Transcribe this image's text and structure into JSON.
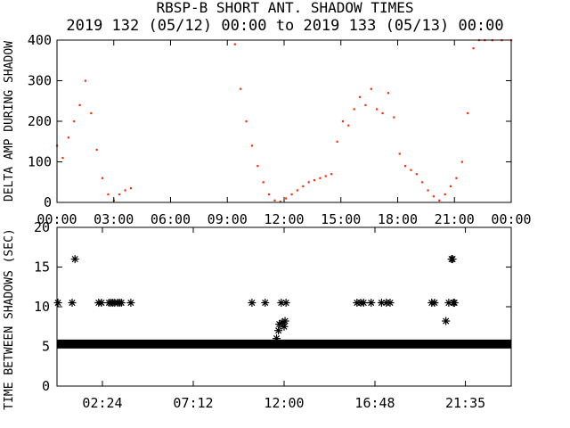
{
  "title_line1": "RBSP-B SHORT ANT. SHADOW TIMES",
  "title_line2": "2019 132 (05/12) 00:00 to 2019 133 (05/13) 00:00",
  "colors": {
    "trace": "#ff2a00",
    "axis": "#000000",
    "marker": "#000000"
  },
  "chart_data": [
    {
      "type": "scatter",
      "ylabel": "DELTA AMP DURING SHADOW",
      "ylim": [
        0,
        400
      ],
      "xlim_hours": [
        0,
        24
      ],
      "yticks": [
        "0",
        "100",
        "200",
        "300",
        "400"
      ],
      "xticks": [
        "00:00",
        "03:00",
        "06:00",
        "09:00",
        "12:00",
        "15:00",
        "18:00",
        "21:00",
        "00:00"
      ],
      "series": [
        {
          "color": "#ff2a00",
          "x_hours": [
            0.0,
            0.3,
            0.6,
            0.9,
            1.2,
            1.5,
            1.8,
            2.1,
            2.4,
            2.7,
            3.0,
            3.3,
            3.6,
            3.9,
            9.4,
            9.7,
            10.0,
            10.3,
            10.6,
            10.9,
            11.2,
            11.5,
            11.8,
            12.1,
            12.4,
            12.7,
            13.0,
            13.3,
            13.6,
            13.9,
            14.2,
            14.5,
            14.8,
            15.1,
            15.4,
            15.7,
            16.0,
            16.3,
            16.6,
            16.9,
            17.2,
            17.5,
            17.8,
            18.1,
            18.4,
            18.7,
            19.0,
            19.3,
            19.6,
            19.9,
            20.2,
            20.5,
            20.8,
            21.1,
            21.4,
            21.7,
            22.0,
            22.3,
            22.6,
            23.0,
            23.5,
            24.0
          ],
          "y": [
            140,
            110,
            160,
            200,
            240,
            300,
            220,
            130,
            60,
            20,
            5,
            20,
            30,
            35,
            390,
            280,
            200,
            140,
            90,
            50,
            20,
            5,
            2,
            10,
            20,
            30,
            40,
            50,
            55,
            60,
            65,
            70,
            150,
            200,
            190,
            230,
            260,
            240,
            280,
            230,
            220,
            270,
            210,
            120,
            90,
            80,
            70,
            50,
            30,
            15,
            5,
            20,
            40,
            60,
            100,
            220,
            380,
            400,
            400,
            400,
            400,
            400
          ]
        }
      ]
    },
    {
      "type": "scatter",
      "ylabel": "TIME BETWEEN SHADOWS (SEC)",
      "ylim": [
        0,
        20
      ],
      "xlim_hours": [
        0,
        24
      ],
      "yticks": [
        "0",
        "5",
        "10",
        "15",
        "20"
      ],
      "xticks": [
        {
          "label": "02:24",
          "h": 2.4
        },
        {
          "label": "07:12",
          "h": 7.2
        },
        {
          "label": "12:00",
          "h": 12.0
        },
        {
          "label": "16:48",
          "h": 16.8
        },
        {
          "label": "21:35",
          "h": 21.58
        }
      ],
      "baseline": {
        "y": 5.3,
        "x_range_hours": [
          0,
          24
        ]
      },
      "series": [
        {
          "marker": "asterisk",
          "x_hours": [
            0.05,
            0.8,
            0.95,
            2.2,
            2.35,
            2.75,
            2.85,
            2.95,
            3.05,
            3.2,
            3.3,
            3.4,
            3.9,
            10.3,
            11.0,
            11.6,
            11.7,
            11.75,
            11.85,
            11.9,
            12.0,
            12.05,
            12.1,
            15.85,
            16.05,
            16.2,
            16.6,
            17.15,
            17.4,
            17.6,
            19.8,
            19.95,
            20.55,
            20.7,
            20.85,
            20.9,
            20.95,
            21.0
          ],
          "y": [
            10.5,
            10.5,
            16.0,
            10.5,
            10.5,
            10.5,
            10.5,
            10.5,
            10.5,
            10.5,
            10.5,
            10.5,
            10.5,
            10.5,
            10.5,
            6.0,
            7.0,
            7.8,
            10.5,
            8.0,
            7.5,
            8.2,
            10.5,
            10.5,
            10.5,
            10.5,
            10.5,
            10.5,
            10.5,
            10.5,
            10.5,
            10.5,
            8.2,
            10.5,
            16.0,
            16.0,
            10.5,
            10.5
          ]
        }
      ]
    }
  ]
}
